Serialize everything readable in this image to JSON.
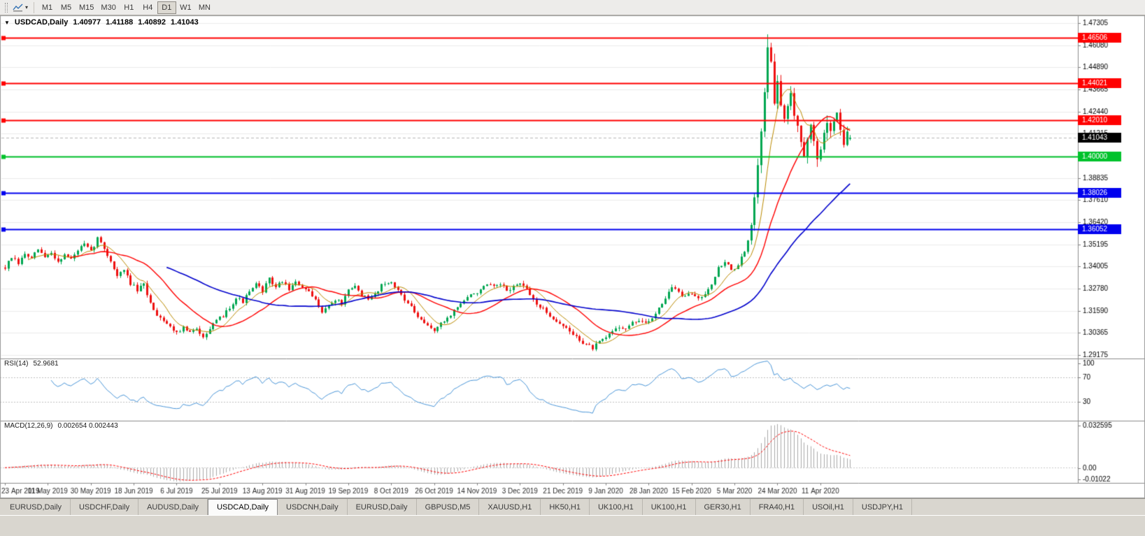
{
  "icons": {
    "collapse": "▼",
    "caret": "▾"
  },
  "toolbar": {
    "timeframes": [
      "M1",
      "M5",
      "M15",
      "M30",
      "H1",
      "H4",
      "D1",
      "W1",
      "MN"
    ],
    "active_timeframe": "D1"
  },
  "header": {
    "symbol": "USDCAD,Daily",
    "open": "1.40977",
    "high": "1.41188",
    "low": "1.40892",
    "close": "1.41043"
  },
  "chart_data": {
    "type": "candlestick",
    "symbol": "USDCAD",
    "timeframe": "Daily",
    "last_ohlc": {
      "open": 1.40977,
      "high": 1.41188,
      "low": 1.40892,
      "close": 1.41043
    },
    "total_candles": 257,
    "candles_per_label": 13,
    "x_labels": [
      "23 Apr 2019",
      "11 May 2019",
      "30 May 2019",
      "18 Jun 2019",
      "6 Jul 2019",
      "25 Jul 2019",
      "13 Aug 2019",
      "31 Aug 2019",
      "19 Sep 2019",
      "8 Oct 2019",
      "26 Oct 2019",
      "14 Nov 2019",
      "3 Dec 2019",
      "21 Dec 2019",
      "9 Jan 2020",
      "28 Jan 2020",
      "15 Feb 2020",
      "5 Mar 2020",
      "24 Mar 2020",
      "11 Apr 2020"
    ],
    "price_axis": {
      "top_price": 1.47305,
      "bottom_price": 1.29175,
      "labels": [
        "1.47305",
        "1.46080",
        "1.44890",
        "1.43665",
        "1.42440",
        "1.41215",
        "1.39990",
        "1.38835",
        "1.37610",
        "1.36420",
        "1.35195",
        "1.34005",
        "1.32780",
        "1.31590",
        "1.30365",
        "1.29175"
      ]
    },
    "close_keypoints": [
      [
        0,
        1.3395
      ],
      [
        2,
        1.345
      ],
      [
        4,
        1.3415
      ],
      [
        6,
        1.347
      ],
      [
        8,
        1.344
      ],
      [
        10,
        1.3495
      ],
      [
        12,
        1.345
      ],
      [
        14,
        1.3475
      ],
      [
        16,
        1.343
      ],
      [
        18,
        1.3465
      ],
      [
        20,
        1.344
      ],
      [
        22,
        1.349
      ],
      [
        24,
        1.352
      ],
      [
        26,
        1.348
      ],
      [
        28,
        1.3555
      ],
      [
        30,
        1.35
      ],
      [
        32,
        1.343
      ],
      [
        34,
        1.335
      ],
      [
        36,
        1.338
      ],
      [
        38,
        1.331
      ],
      [
        40,
        1.327
      ],
      [
        42,
        1.33
      ],
      [
        44,
        1.32
      ],
      [
        46,
        1.314
      ],
      [
        48,
        1.311
      ],
      [
        50,
        1.307
      ],
      [
        52,
        1.3045
      ],
      [
        54,
        1.3065
      ],
      [
        56,
        1.304
      ],
      [
        58,
        1.3055
      ],
      [
        60,
        1.3025
      ],
      [
        62,
        1.306
      ],
      [
        64,
        1.31
      ],
      [
        66,
        1.3135
      ],
      [
        68,
        1.318
      ],
      [
        70,
        1.323
      ],
      [
        72,
        1.321
      ],
      [
        74,
        1.326
      ],
      [
        76,
        1.33
      ],
      [
        78,
        1.327
      ],
      [
        80,
        1.333
      ],
      [
        82,
        1.329
      ],
      [
        84,
        1.332
      ],
      [
        86,
        1.328
      ],
      [
        88,
        1.331
      ],
      [
        90,
        1.329
      ],
      [
        92,
        1.3255
      ],
      [
        94,
        1.3215
      ],
      [
        96,
        1.316
      ],
      [
        98,
        1.3185
      ],
      [
        100,
        1.322
      ],
      [
        102,
        1.32
      ],
      [
        104,
        1.3265
      ],
      [
        106,
        1.329
      ],
      [
        108,
        1.325
      ],
      [
        110,
        1.3215
      ],
      [
        112,
        1.325
      ],
      [
        114,
        1.33
      ],
      [
        116,
        1.332
      ],
      [
        118,
        1.329
      ],
      [
        120,
        1.325
      ],
      [
        122,
        1.32
      ],
      [
        124,
        1.315
      ],
      [
        126,
        1.31
      ],
      [
        128,
        1.3075
      ],
      [
        130,
        1.3055
      ],
      [
        132,
        1.3085
      ],
      [
        134,
        1.312
      ],
      [
        136,
        1.316
      ],
      [
        138,
        1.32
      ],
      [
        140,
        1.323
      ],
      [
        142,
        1.3255
      ],
      [
        144,
        1.327
      ],
      [
        146,
        1.33
      ],
      [
        148,
        1.3285
      ],
      [
        150,
        1.33
      ],
      [
        152,
        1.327
      ],
      [
        154,
        1.329
      ],
      [
        156,
        1.331
      ],
      [
        158,
        1.327
      ],
      [
        160,
        1.322
      ],
      [
        162,
        1.318
      ],
      [
        164,
        1.315
      ],
      [
        166,
        1.312
      ],
      [
        168,
        1.309
      ],
      [
        170,
        1.306
      ],
      [
        172,
        1.303
      ],
      [
        174,
        1.3
      ],
      [
        176,
        1.2975
      ],
      [
        178,
        1.2955
      ],
      [
        180,
        1.2985
      ],
      [
        182,
        1.301
      ],
      [
        184,
        1.305
      ],
      [
        186,
        1.3075
      ],
      [
        188,
        1.306
      ],
      [
        190,
        1.309
      ],
      [
        192,
        1.311
      ],
      [
        194,
        1.3085
      ],
      [
        196,
        1.312
      ],
      [
        198,
        1.318
      ],
      [
        200,
        1.323
      ],
      [
        202,
        1.329
      ],
      [
        204,
        1.326
      ],
      [
        206,
        1.323
      ],
      [
        208,
        1.3255
      ],
      [
        210,
        1.3225
      ],
      [
        212,
        1.326
      ],
      [
        214,
        1.331
      ],
      [
        216,
        1.339
      ],
      [
        218,
        1.343
      ],
      [
        220,
        1.338
      ],
      [
        222,
        1.341
      ],
      [
        224,
        1.348
      ],
      [
        226,
        1.36
      ],
      [
        228,
        1.398
      ],
      [
        230,
        1.435
      ],
      [
        231,
        1.462
      ],
      [
        232,
        1.45
      ],
      [
        233,
        1.428
      ],
      [
        234,
        1.442
      ],
      [
        235,
        1.43
      ],
      [
        236,
        1.418
      ],
      [
        237,
        1.428
      ],
      [
        238,
        1.435
      ],
      [
        239,
        1.425
      ],
      [
        240,
        1.418
      ],
      [
        241,
        1.41
      ],
      [
        242,
        1.402
      ],
      [
        243,
        1.408
      ],
      [
        244,
        1.415
      ],
      [
        245,
        1.41
      ],
      [
        246,
        1.398
      ],
      [
        247,
        1.405
      ],
      [
        248,
        1.412
      ],
      [
        249,
        1.418
      ],
      [
        250,
        1.415
      ],
      [
        251,
        1.42
      ],
      [
        252,
        1.425
      ],
      [
        253,
        1.415
      ],
      [
        254,
        1.408
      ],
      [
        255,
        1.412
      ],
      [
        256,
        1.41043
      ]
    ],
    "spike": {
      "index": 231,
      "high": 1.4669
    },
    "noise_seed": 7,
    "noise": {
      "base_amp": 0.0011,
      "spike_amp": 0.0028,
      "base_wick": 0.0016,
      "spike_wick": 0.0045,
      "spike_from_index": 226
    },
    "candle_colors": {
      "up": "#00a651",
      "down": "#ee1111"
    },
    "moving_averages": [
      {
        "period": 8,
        "color": "#bb8a00",
        "width": 1
      },
      {
        "period": 21,
        "color": "#ff0000",
        "width": 1.4
      },
      {
        "period": 50,
        "color": "#0000cc",
        "width": 1.6
      }
    ],
    "hlines": [
      {
        "price": 1.46506,
        "label": "1.46506",
        "color": "#ff0000"
      },
      {
        "price": 1.44021,
        "label": "1.44021",
        "color": "#ff0000"
      },
      {
        "price": 1.4201,
        "label": "1.42010",
        "color": "#ff0000"
      },
      {
        "price": 1.4,
        "label": "1.40000",
        "color": "#00c22b"
      },
      {
        "price": 1.38026,
        "label": "1.38026",
        "color": "#0000ee"
      },
      {
        "price": 1.36052,
        "label": "1.36052",
        "color": "#0000ee"
      }
    ],
    "current_price": {
      "value": 1.41043,
      "label": "1.41043",
      "box_color": "#000000",
      "text_color": "#ffffff"
    },
    "rsi": {
      "name": "RSI(14)",
      "value_text": "52.9681",
      "period": 14,
      "levels": [
        70,
        30
      ],
      "axis_labels": [
        "100",
        "70",
        "30"
      ],
      "line_color": "#4a96d9",
      "level_color": "#c0c0c0"
    },
    "macd": {
      "name": "MACD(12,26,9)",
      "values_text": "0.002654 0.002443",
      "fast": 12,
      "slow": 26,
      "signal": 9,
      "axis_max": 0.032595,
      "axis_min": -0.01022,
      "axis_labels": [
        "0.032595",
        "0.00",
        "-0.01022"
      ],
      "hist_color": "#a9a9a9",
      "signal_color": "#ff0000"
    },
    "grid_color": "#ececec"
  },
  "bottom_tabs": {
    "tabs": [
      "EURUSD,Daily",
      "USDCHF,Daily",
      "AUDUSD,Daily",
      "USDCAD,Daily",
      "USDCNH,Daily",
      "EURUSD,Daily",
      "GBPUSD,M5",
      "XAUUSD,H1",
      "HK50,H1",
      "UK100,H1",
      "UK100,H1",
      "GER30,H1",
      "FRA40,H1",
      "USOil,H1",
      "USDJPY,H1"
    ],
    "active_index": 3
  }
}
